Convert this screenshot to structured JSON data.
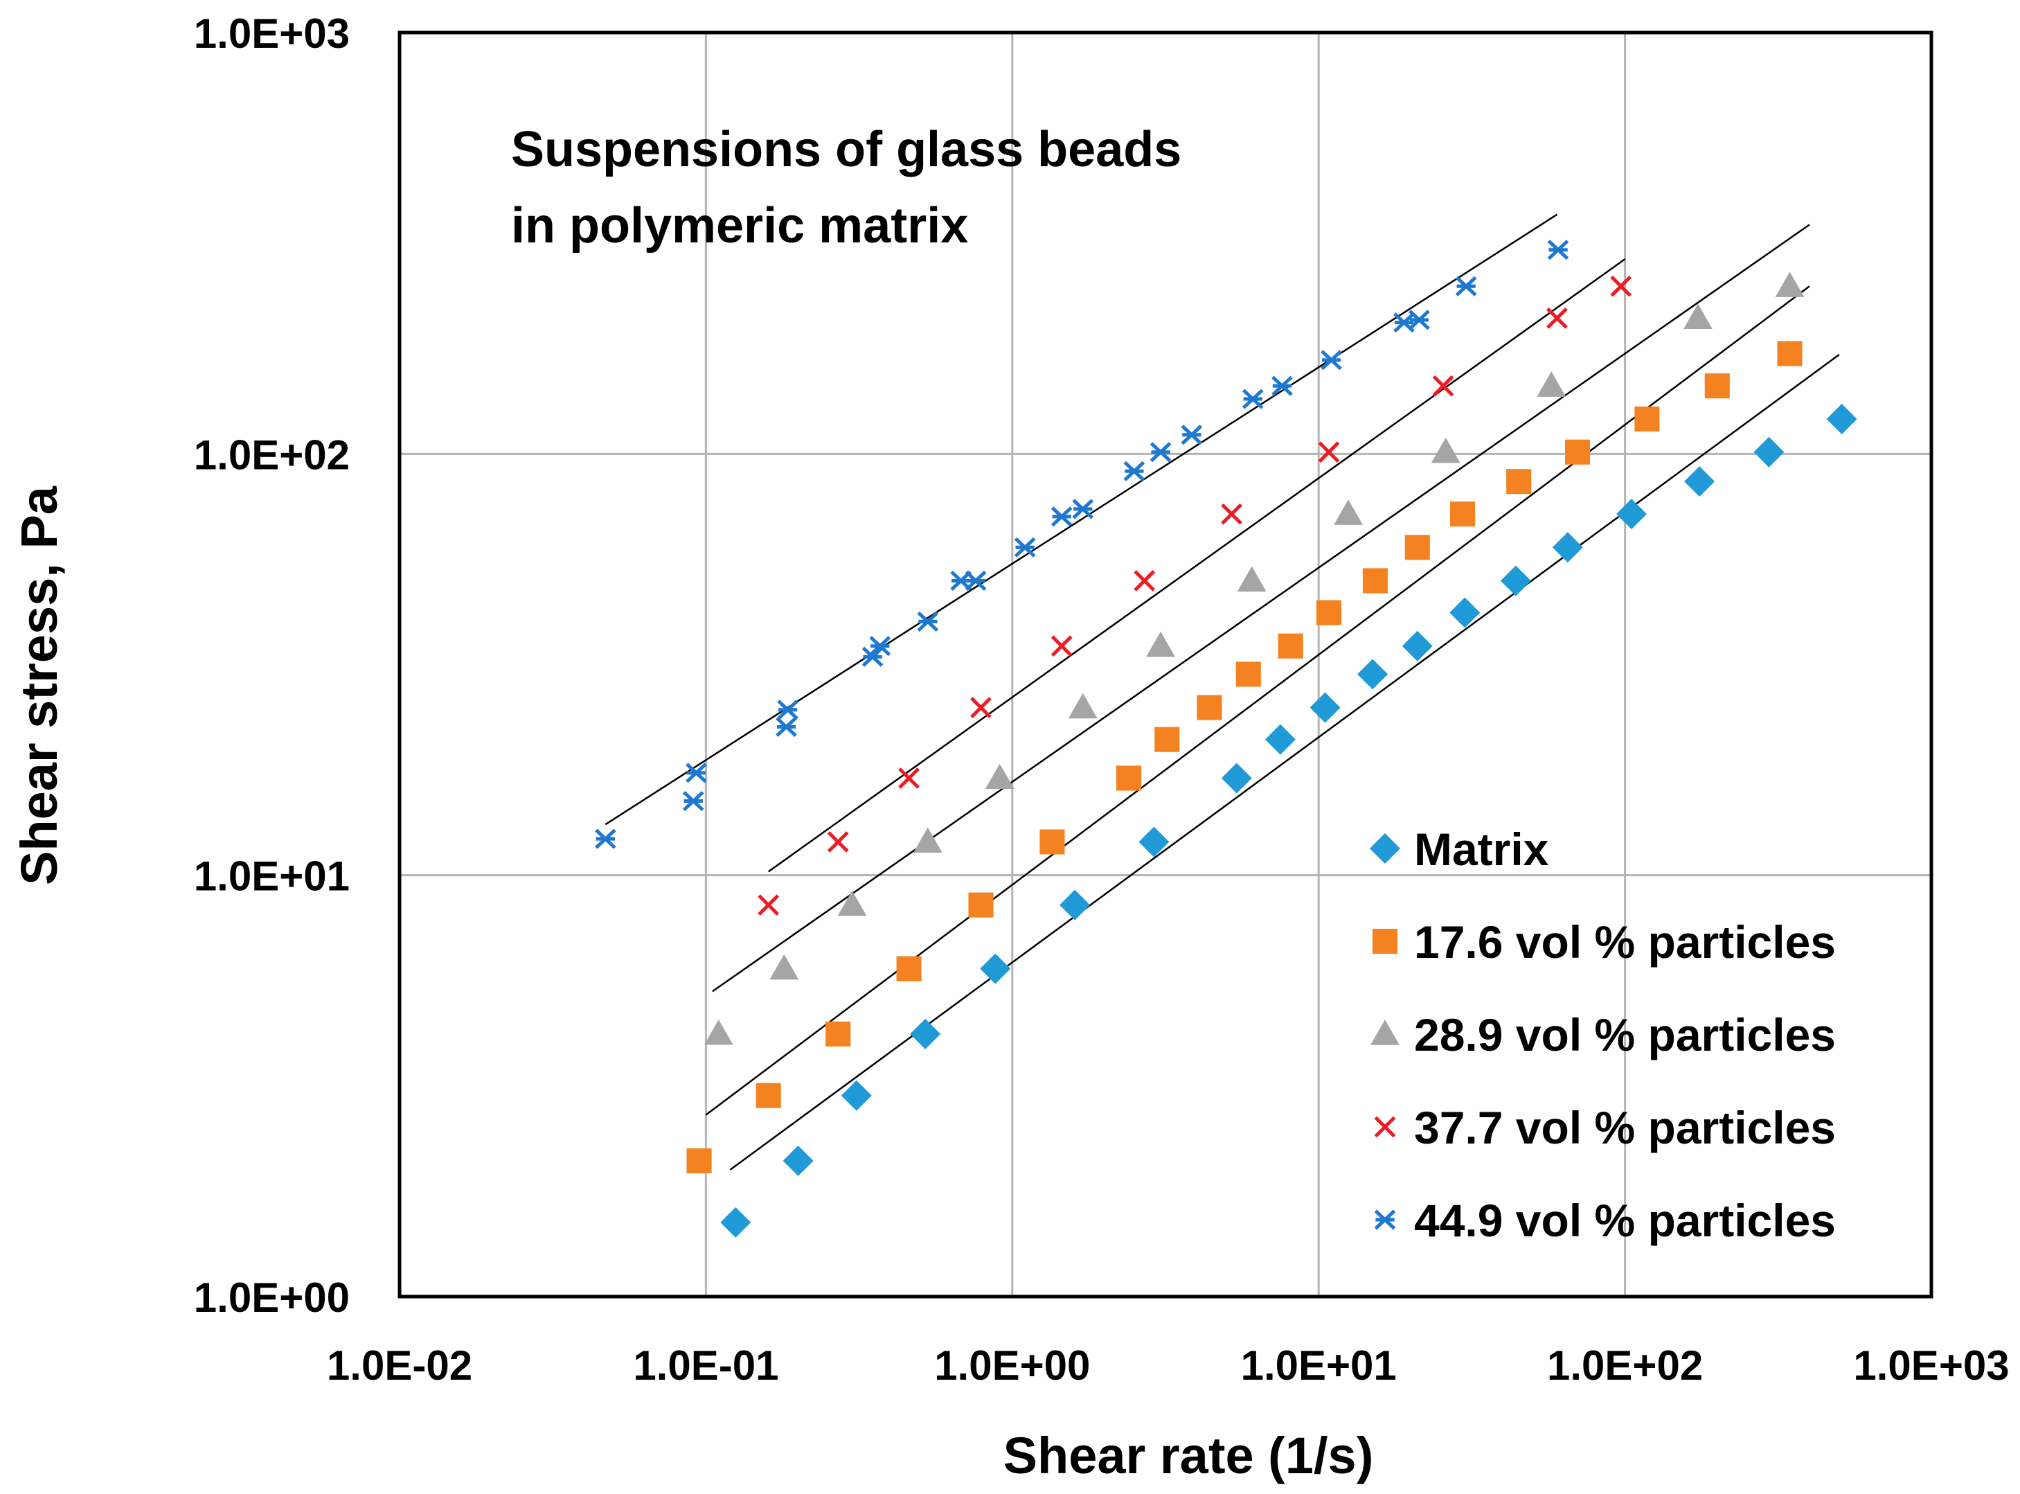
{
  "chart_data": {
    "type": "scatter",
    "x_scale": "log",
    "y_scale": "log",
    "xlim": [
      0.01,
      1000
    ],
    "ylim": [
      1,
      1000
    ],
    "grid": true,
    "xlabel": "Shear rate (1/s)",
    "ylabel": "Shear stress, Pa",
    "x_ticks": [
      0.01,
      0.1,
      1,
      10,
      100,
      1000
    ],
    "y_ticks": [
      1,
      10,
      100,
      1000
    ],
    "x_tick_labels": [
      "1.0E-02",
      "1.0E-01",
      "1.0E+00",
      "1.0E+01",
      "1.0E+02",
      "1.0E+03"
    ],
    "y_tick_labels": [
      "1.0E+00",
      "1.0E+01",
      "1.0E+02",
      "1.0E+03"
    ],
    "annotation": [
      "Suspensions of glass beads",
      "in polymeric matrix"
    ],
    "legend_position": "bottom-right",
    "series": [
      {
        "name": "Matrix",
        "marker": "diamond",
        "color": "#1f9ad6",
        "points": [
          [
            0.125,
            1.5
          ],
          [
            0.2,
            2.1
          ],
          [
            0.31,
            3.0
          ],
          [
            0.52,
            4.2
          ],
          [
            0.88,
            6.0
          ],
          [
            1.6,
            8.5
          ],
          [
            2.9,
            12
          ],
          [
            5.4,
            17
          ],
          [
            7.5,
            21
          ],
          [
            10.5,
            25
          ],
          [
            15,
            30
          ],
          [
            21,
            35
          ],
          [
            30,
            42
          ],
          [
            44,
            50
          ],
          [
            65,
            60
          ],
          [
            105,
            72
          ],
          [
            175,
            86
          ],
          [
            295,
            101
          ],
          [
            510,
            121
          ]
        ],
        "fit_line": [
          [
            0.12,
            2.0
          ],
          [
            500,
            172
          ]
        ]
      },
      {
        "name": "17.6 vol % particles",
        "marker": "square",
        "color": "#f58220",
        "points": [
          [
            0.095,
            2.1
          ],
          [
            0.16,
            3.0
          ],
          [
            0.27,
            4.2
          ],
          [
            0.46,
            6.0
          ],
          [
            0.79,
            8.5
          ],
          [
            1.35,
            12
          ],
          [
            2.4,
            17
          ],
          [
            3.2,
            21
          ],
          [
            4.4,
            25
          ],
          [
            5.9,
            30
          ],
          [
            8.1,
            35
          ],
          [
            10.8,
            42
          ],
          [
            15.3,
            50
          ],
          [
            21,
            60
          ],
          [
            29.5,
            72
          ],
          [
            45,
            86
          ],
          [
            70,
            101
          ],
          [
            118,
            121
          ],
          [
            200,
            145
          ],
          [
            345,
            173
          ]
        ],
        "fit_line": [
          [
            0.1,
            2.7
          ],
          [
            400,
            250
          ]
        ]
      },
      {
        "name": "28.9 vol % particles",
        "marker": "triangle",
        "color": "#a5a5a5",
        "points": [
          [
            0.11,
            4.2
          ],
          [
            0.18,
            6.0
          ],
          [
            0.3,
            8.5
          ],
          [
            0.53,
            12
          ],
          [
            0.91,
            17
          ],
          [
            1.7,
            25
          ],
          [
            3.05,
            35
          ],
          [
            6.05,
            50
          ],
          [
            12.5,
            72
          ],
          [
            26,
            101
          ],
          [
            57.5,
            145
          ],
          [
            173,
            210
          ],
          [
            345,
            250
          ]
        ],
        "fit_line": [
          [
            0.105,
            5.3
          ],
          [
            400,
            350
          ]
        ]
      },
      {
        "name": "37.7 vol % particles",
        "marker": "x",
        "color": "#ed1c24",
        "points": [
          [
            0.16,
            8.5
          ],
          [
            0.27,
            12
          ],
          [
            0.46,
            17
          ],
          [
            0.79,
            25
          ],
          [
            1.45,
            35
          ],
          [
            2.7,
            50
          ],
          [
            5.2,
            72
          ],
          [
            10.8,
            101
          ],
          [
            25.5,
            145
          ],
          [
            60,
            210
          ],
          [
            97,
            250
          ]
        ],
        "fit_line": [
          [
            0.16,
            10.2
          ],
          [
            100,
            290
          ]
        ]
      },
      {
        "name": "44.9 vol % particles",
        "marker": "asterisk",
        "color": "#1f78d0",
        "points": [
          [
            0.047,
            12.2
          ],
          [
            0.091,
            15
          ],
          [
            0.093,
            17.5
          ],
          [
            0.183,
            22.5
          ],
          [
            0.185,
            24.7
          ],
          [
            0.35,
            33
          ],
          [
            0.37,
            35
          ],
          [
            0.53,
            40
          ],
          [
            0.68,
            50
          ],
          [
            0.76,
            50
          ],
          [
            1.1,
            60
          ],
          [
            1.45,
            71
          ],
          [
            1.7,
            74
          ],
          [
            2.5,
            91
          ],
          [
            3.05,
            101
          ],
          [
            3.85,
            111
          ],
          [
            6.1,
            135
          ],
          [
            7.6,
            145
          ],
          [
            11,
            167
          ],
          [
            19,
            205
          ],
          [
            21.3,
            208
          ],
          [
            30.3,
            250
          ],
          [
            60.5,
            305
          ]
        ],
        "fit_line": [
          [
            0.047,
            13.2
          ],
          [
            60,
            370
          ]
        ]
      }
    ]
  }
}
